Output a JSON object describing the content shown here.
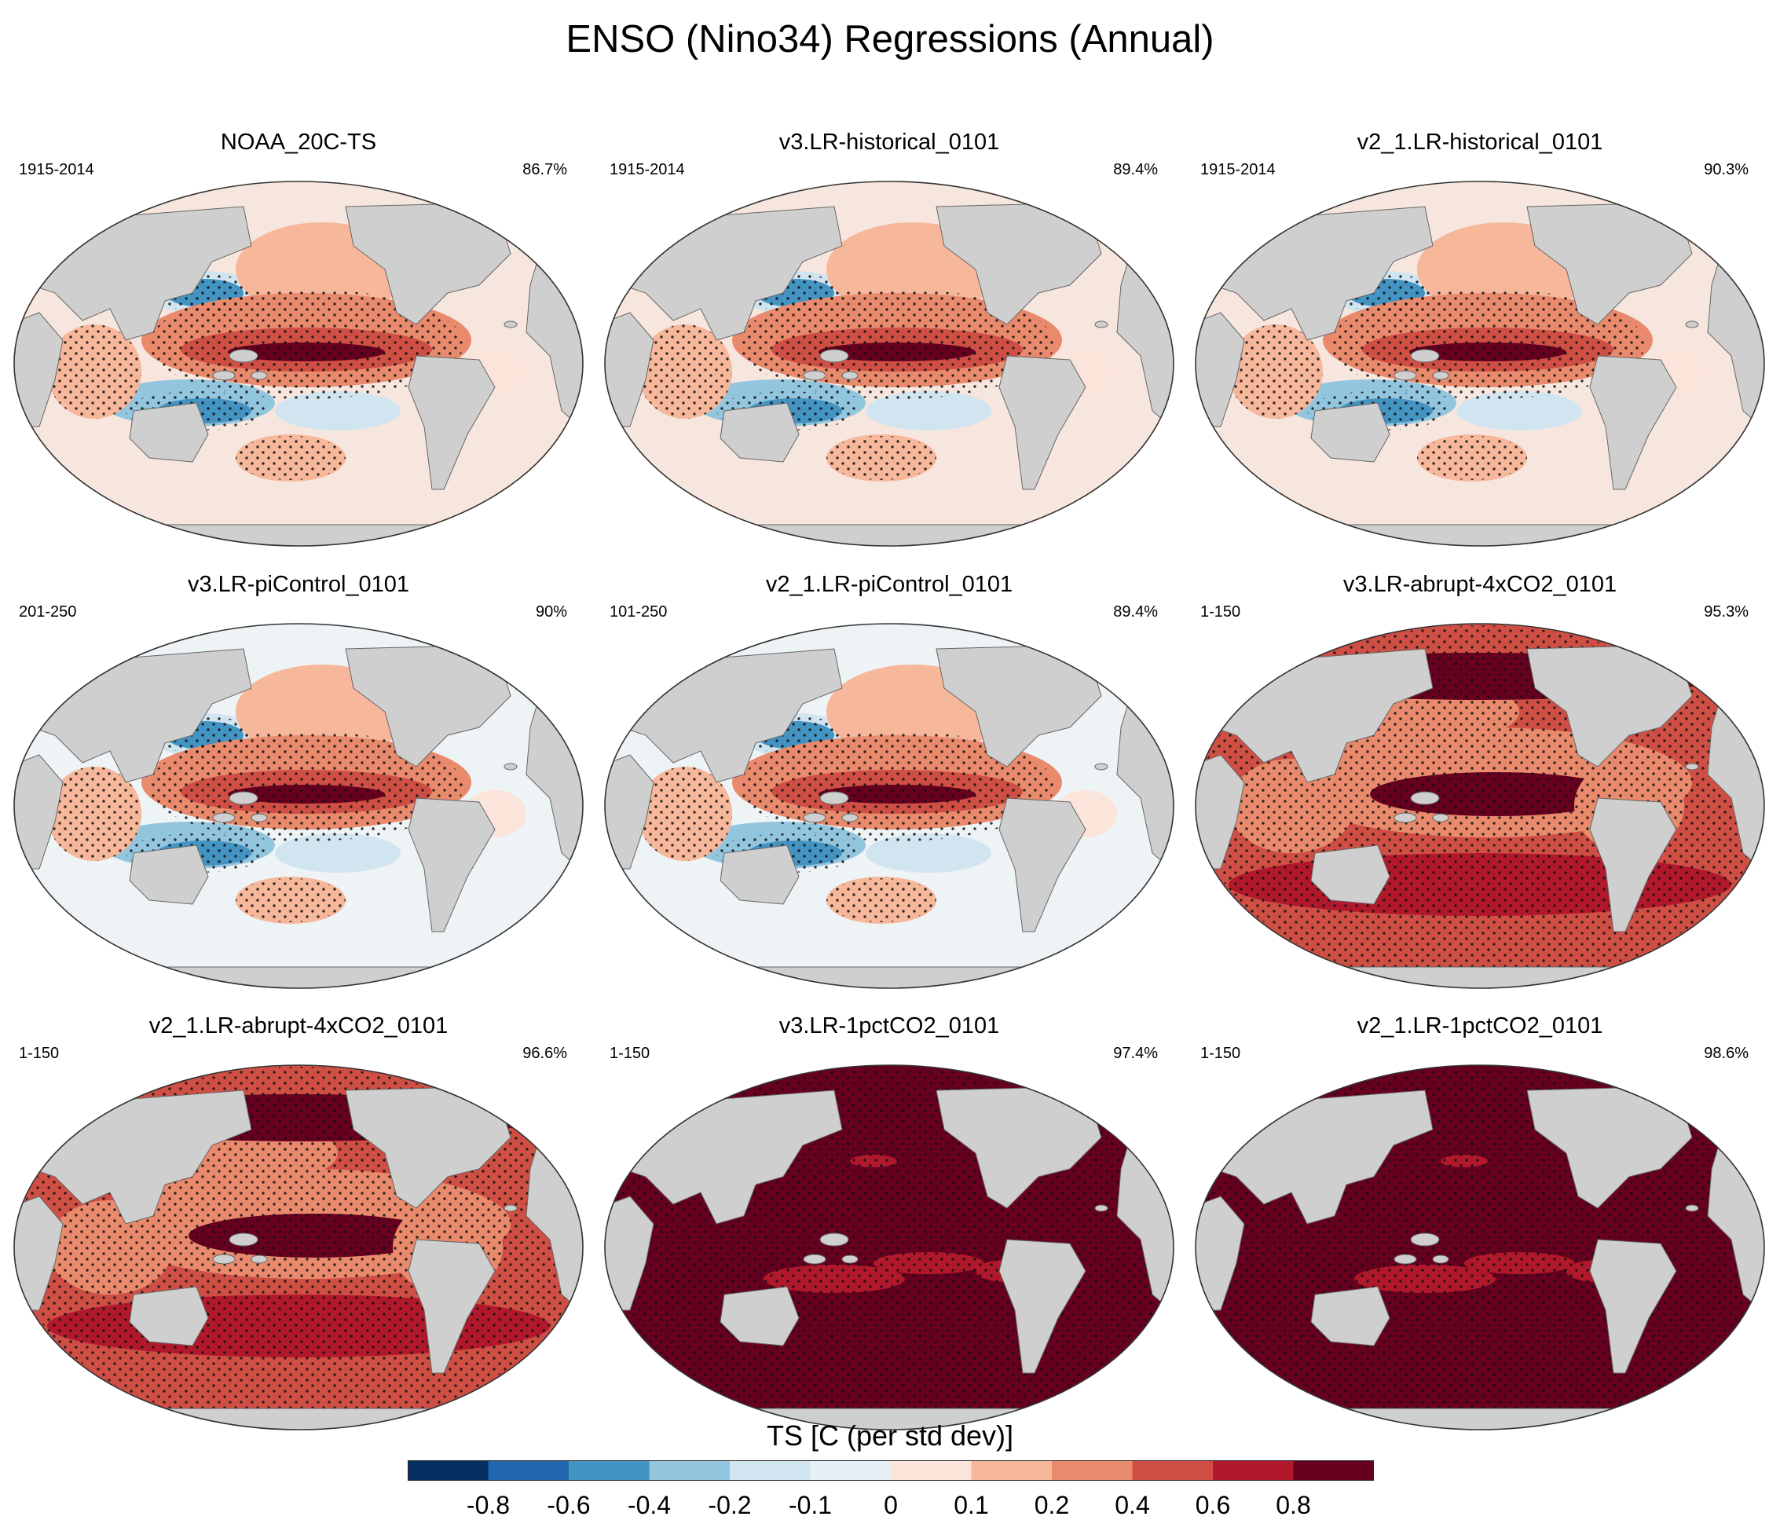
{
  "title": "ENSO (Nino34) Regressions (Annual)",
  "panels": [
    {
      "title": "NOAA_20C-TS",
      "years": "1915-2014",
      "pct": "86.7%",
      "pattern": "observed"
    },
    {
      "title": "v3.LR-historical_0101",
      "years": "1915-2014",
      "pct": "89.4%",
      "pattern": "historical"
    },
    {
      "title": "v2_1.LR-historical_0101",
      "years": "1915-2014",
      "pct": "90.3%",
      "pattern": "historical"
    },
    {
      "title": "v3.LR-piControl_0101",
      "years": "201-250",
      "pct": "90%",
      "pattern": "control"
    },
    {
      "title": "v2_1.LR-piControl_0101",
      "years": "101-250",
      "pct": "89.4%",
      "pattern": "control"
    },
    {
      "title": "v3.LR-abrupt-4xCO2_0101",
      "years": "1-150",
      "pct": "95.3%",
      "pattern": "warm"
    },
    {
      "title": "v2_1.LR-abrupt-4xCO2_0101",
      "years": "1-150",
      "pct": "96.6%",
      "pattern": "warm"
    },
    {
      "title": "v3.LR-1pctCO2_0101",
      "years": "1-150",
      "pct": "97.4%",
      "pattern": "hot"
    },
    {
      "title": "v2_1.LR-1pctCO2_0101",
      "years": "1-150",
      "pct": "98.6%",
      "pattern": "hot"
    }
  ],
  "colorbar": {
    "title": "TS [C (per std dev)]",
    "labels": [
      "-0.8",
      "-0.6",
      "-0.4",
      "-0.2",
      "-0.1",
      "0",
      "0.1",
      "0.2",
      "0.4",
      "0.6",
      "0.8"
    ],
    "colors": [
      "#053061",
      "#2166ac",
      "#4393c3",
      "#92c5de",
      "#d1e5f0",
      "#e7f0f5",
      "#fbe4da",
      "#f7b79b",
      "#e98a6d",
      "#cf4f45",
      "#b2182b",
      "#67001f"
    ]
  },
  "colors": {
    "land": "#cfcfcf",
    "ocean_neutral": "#f3ece8",
    "outline": "#555555"
  }
}
